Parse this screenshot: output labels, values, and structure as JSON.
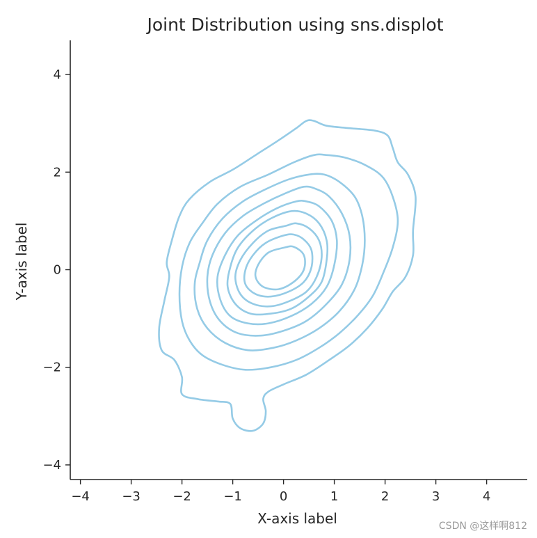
{
  "chart_data": {
    "type": "contour",
    "title": "Joint Distribution using sns.displot",
    "xlabel": "X-axis label",
    "ylabel": "Y-axis label",
    "xlim": [
      -4.2,
      4.8
    ],
    "ylim": [
      -4.3,
      4.7
    ],
    "xticks": [
      -4,
      -3,
      -2,
      -1,
      0,
      1,
      2,
      3,
      4
    ],
    "yticks": [
      -4,
      -2,
      0,
      2,
      4
    ],
    "grid": false,
    "line_color": "#95cbe6",
    "contour_levels": [
      {
        "level": 1,
        "points": [
          [
            0.45,
            3.05
          ],
          [
            0.25,
            2.9
          ],
          [
            -0.1,
            2.65
          ],
          [
            -0.55,
            2.35
          ],
          [
            -1.0,
            2.05
          ],
          [
            -1.45,
            1.8
          ],
          [
            -1.85,
            1.45
          ],
          [
            -2.05,
            1.1
          ],
          [
            -2.2,
            0.6
          ],
          [
            -2.3,
            0.15
          ],
          [
            -2.25,
            -0.15
          ],
          [
            -2.35,
            -0.65
          ],
          [
            -2.45,
            -1.2
          ],
          [
            -2.4,
            -1.65
          ],
          [
            -2.15,
            -1.85
          ],
          [
            -2.0,
            -2.2
          ],
          [
            -2.0,
            -2.55
          ],
          [
            -1.7,
            -2.65
          ],
          [
            -1.3,
            -2.7
          ],
          [
            -1.05,
            -2.75
          ],
          [
            -1.0,
            -3.05
          ],
          [
            -0.85,
            -3.25
          ],
          [
            -0.6,
            -3.3
          ],
          [
            -0.4,
            -3.15
          ],
          [
            -0.35,
            -2.9
          ],
          [
            -0.4,
            -2.65
          ],
          [
            -0.3,
            -2.5
          ],
          [
            0.0,
            -2.35
          ],
          [
            0.45,
            -2.15
          ],
          [
            0.9,
            -1.85
          ],
          [
            1.3,
            -1.55
          ],
          [
            1.65,
            -1.2
          ],
          [
            1.95,
            -0.8
          ],
          [
            2.15,
            -0.45
          ],
          [
            2.4,
            -0.15
          ],
          [
            2.55,
            0.3
          ],
          [
            2.55,
            0.8
          ],
          [
            2.6,
            1.5
          ],
          [
            2.45,
            1.95
          ],
          [
            2.25,
            2.2
          ],
          [
            2.15,
            2.5
          ],
          [
            2.05,
            2.75
          ],
          [
            1.8,
            2.85
          ],
          [
            1.3,
            2.9
          ],
          [
            0.85,
            2.95
          ],
          [
            0.6,
            3.05
          ]
        ]
      },
      {
        "level": 2,
        "points": [
          [
            0.6,
            2.35
          ],
          [
            0.2,
            2.2
          ],
          [
            -0.3,
            1.95
          ],
          [
            -0.85,
            1.7
          ],
          [
            -1.3,
            1.35
          ],
          [
            -1.6,
            0.95
          ],
          [
            -1.85,
            0.55
          ],
          [
            -2.0,
            0.05
          ],
          [
            -2.05,
            -0.5
          ],
          [
            -2.0,
            -1.05
          ],
          [
            -1.85,
            -1.45
          ],
          [
            -1.6,
            -1.75
          ],
          [
            -1.2,
            -1.95
          ],
          [
            -0.75,
            -2.05
          ],
          [
            -0.25,
            -2.0
          ],
          [
            0.25,
            -1.85
          ],
          [
            0.7,
            -1.6
          ],
          [
            1.1,
            -1.3
          ],
          [
            1.45,
            -0.95
          ],
          [
            1.75,
            -0.55
          ],
          [
            1.95,
            -0.1
          ],
          [
            2.15,
            0.45
          ],
          [
            2.25,
            1.0
          ],
          [
            2.15,
            1.5
          ],
          [
            1.95,
            1.9
          ],
          [
            1.6,
            2.15
          ],
          [
            1.2,
            2.3
          ],
          [
            0.85,
            2.35
          ]
        ]
      },
      {
        "level": 3,
        "points": [
          [
            0.5,
            1.95
          ],
          [
            0.1,
            1.85
          ],
          [
            -0.35,
            1.65
          ],
          [
            -0.8,
            1.4
          ],
          [
            -1.2,
            1.05
          ],
          [
            -1.5,
            0.6
          ],
          [
            -1.65,
            0.15
          ],
          [
            -1.75,
            -0.3
          ],
          [
            -1.7,
            -0.8
          ],
          [
            -1.5,
            -1.2
          ],
          [
            -1.15,
            -1.5
          ],
          [
            -0.7,
            -1.65
          ],
          [
            -0.2,
            -1.6
          ],
          [
            0.25,
            -1.45
          ],
          [
            0.7,
            -1.2
          ],
          [
            1.1,
            -0.85
          ],
          [
            1.4,
            -0.4
          ],
          [
            1.55,
            0.1
          ],
          [
            1.6,
            0.6
          ],
          [
            1.55,
            1.1
          ],
          [
            1.4,
            1.5
          ],
          [
            1.1,
            1.8
          ],
          [
            0.8,
            1.95
          ]
        ]
      },
      {
        "level": 4,
        "points": [
          [
            0.4,
            1.7
          ],
          [
            0.0,
            1.55
          ],
          [
            -0.4,
            1.35
          ],
          [
            -0.8,
            1.1
          ],
          [
            -1.15,
            0.75
          ],
          [
            -1.4,
            0.3
          ],
          [
            -1.5,
            -0.15
          ],
          [
            -1.45,
            -0.65
          ],
          [
            -1.25,
            -1.05
          ],
          [
            -0.9,
            -1.3
          ],
          [
            -0.45,
            -1.35
          ],
          [
            0.0,
            -1.25
          ],
          [
            0.45,
            -1.05
          ],
          [
            0.85,
            -0.7
          ],
          [
            1.15,
            -0.3
          ],
          [
            1.3,
            0.2
          ],
          [
            1.3,
            0.7
          ],
          [
            1.15,
            1.15
          ],
          [
            0.9,
            1.5
          ],
          [
            0.65,
            1.65
          ]
        ]
      },
      {
        "level": 5,
        "points": [
          [
            0.25,
            1.4
          ],
          [
            -0.15,
            1.25
          ],
          [
            -0.55,
            1.0
          ],
          [
            -0.9,
            0.7
          ],
          [
            -1.15,
            0.3
          ],
          [
            -1.3,
            -0.15
          ],
          [
            -1.25,
            -0.6
          ],
          [
            -1.05,
            -0.95
          ],
          [
            -0.7,
            -1.1
          ],
          [
            -0.3,
            -1.1
          ],
          [
            0.15,
            -0.95
          ],
          [
            0.55,
            -0.7
          ],
          [
            0.85,
            -0.35
          ],
          [
            1.0,
            0.1
          ],
          [
            1.05,
            0.6
          ],
          [
            0.95,
            1.0
          ],
          [
            0.7,
            1.3
          ],
          [
            0.45,
            1.4
          ]
        ]
      },
      {
        "level": 6,
        "points": [
          [
            0.15,
            1.2
          ],
          [
            -0.25,
            1.05
          ],
          [
            -0.6,
            0.8
          ],
          [
            -0.9,
            0.45
          ],
          [
            -1.05,
            0.05
          ],
          [
            -1.1,
            -0.35
          ],
          [
            -0.95,
            -0.7
          ],
          [
            -0.65,
            -0.9
          ],
          [
            -0.25,
            -0.9
          ],
          [
            0.15,
            -0.8
          ],
          [
            0.5,
            -0.55
          ],
          [
            0.75,
            -0.25
          ],
          [
            0.85,
            0.2
          ],
          [
            0.85,
            0.6
          ],
          [
            0.7,
            0.95
          ],
          [
            0.45,
            1.15
          ]
        ]
      },
      {
        "level": 7,
        "points": [
          [
            0.05,
            0.9
          ],
          [
            -0.3,
            0.8
          ],
          [
            -0.6,
            0.55
          ],
          [
            -0.85,
            0.2
          ],
          [
            -0.95,
            -0.15
          ],
          [
            -0.85,
            -0.5
          ],
          [
            -0.6,
            -0.7
          ],
          [
            -0.25,
            -0.75
          ],
          [
            0.1,
            -0.65
          ],
          [
            0.45,
            -0.45
          ],
          [
            0.65,
            -0.15
          ],
          [
            0.75,
            0.25
          ],
          [
            0.7,
            0.6
          ],
          [
            0.5,
            0.85
          ],
          [
            0.25,
            0.95
          ]
        ]
      },
      {
        "level": 8,
        "points": [
          [
            0.0,
            0.7
          ],
          [
            -0.35,
            0.55
          ],
          [
            -0.6,
            0.3
          ],
          [
            -0.75,
            0.0
          ],
          [
            -0.75,
            -0.3
          ],
          [
            -0.55,
            -0.5
          ],
          [
            -0.25,
            -0.55
          ],
          [
            0.1,
            -0.45
          ],
          [
            0.4,
            -0.25
          ],
          [
            0.55,
            0.05
          ],
          [
            0.55,
            0.4
          ],
          [
            0.4,
            0.62
          ],
          [
            0.2,
            0.72
          ]
        ]
      },
      {
        "level": 9,
        "points": [
          [
            0.0,
            0.45
          ],
          [
            -0.3,
            0.35
          ],
          [
            -0.5,
            0.1
          ],
          [
            -0.55,
            -0.15
          ],
          [
            -0.4,
            -0.35
          ],
          [
            -0.1,
            -0.4
          ],
          [
            0.2,
            -0.25
          ],
          [
            0.4,
            0.0
          ],
          [
            0.4,
            0.3
          ],
          [
            0.2,
            0.47
          ]
        ]
      }
    ]
  },
  "watermark": "CSDN @这样啊812"
}
